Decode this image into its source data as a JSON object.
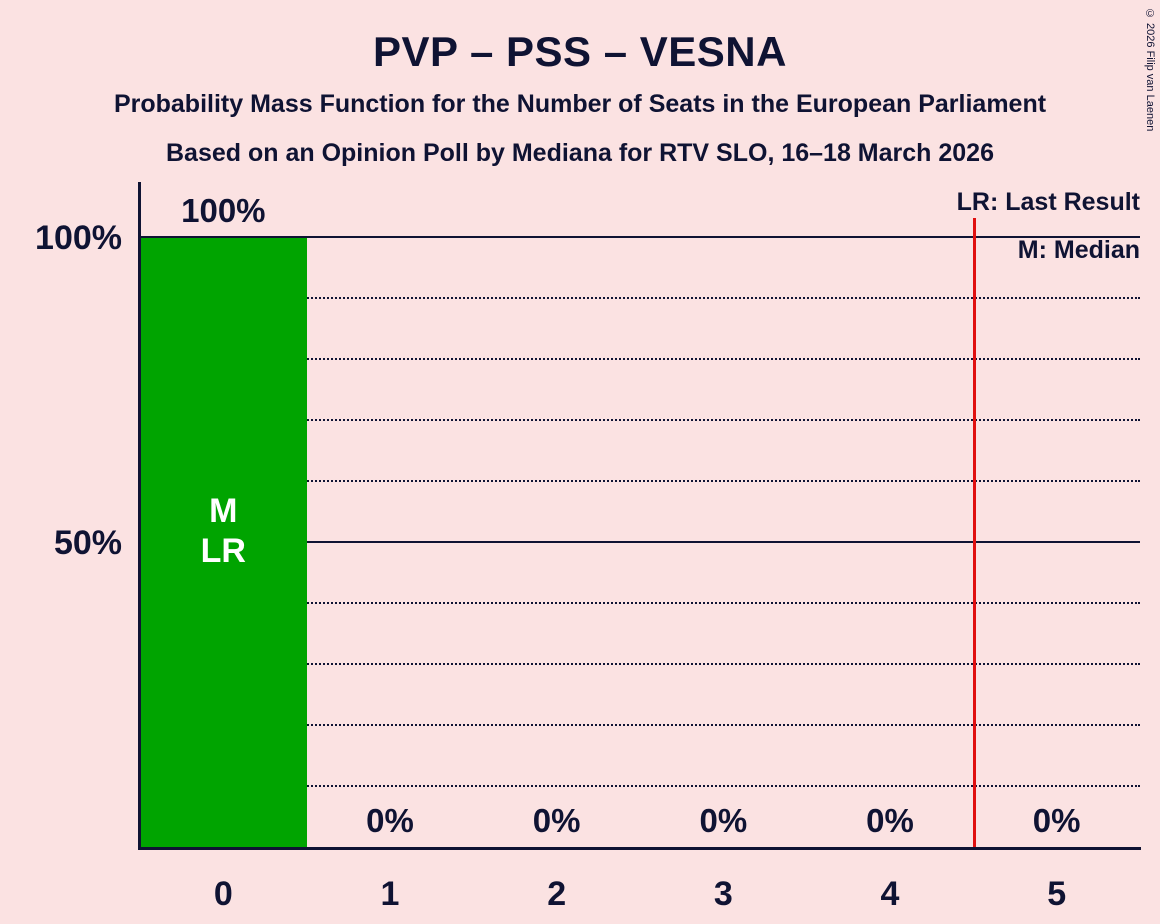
{
  "page": {
    "title": "PVP – PSS – VESNA",
    "subtitle": "Probability Mass Function for the Number of Seats in the European Parliament",
    "poll_info": "Based on an Opinion Poll by Mediana for RTV SLO, 16–18 March 2026",
    "copyright": "© 2026 Filip van Laenen"
  },
  "legend": {
    "lines": [
      "LR: Last Result",
      "M: Median"
    ]
  },
  "colors": {
    "background": "#fbe2e2",
    "text": "#0f1333",
    "bar": "#00a400",
    "bar_text": "#ffffff",
    "red_line": "#e01010"
  },
  "chart_data": {
    "type": "bar",
    "title": "PVP – PSS – VESNA",
    "categories": [
      "0",
      "1",
      "2",
      "3",
      "4",
      "5"
    ],
    "values": [
      100,
      0,
      0,
      0,
      0,
      0
    ],
    "value_labels": [
      "100%",
      "0%",
      "0%",
      "0%",
      "0%",
      "0%"
    ],
    "bar_annotations": [
      [
        "M",
        "LR"
      ],
      [],
      [],
      [],
      [],
      []
    ],
    "ylim": [
      0,
      100
    ],
    "gridlines": [
      {
        "value": 100,
        "label": "100%",
        "style": "solid"
      },
      {
        "value": 90,
        "label": "",
        "style": "dotted"
      },
      {
        "value": 80,
        "label": "",
        "style": "dotted"
      },
      {
        "value": 70,
        "label": "",
        "style": "dotted"
      },
      {
        "value": 60,
        "label": "",
        "style": "dotted"
      },
      {
        "value": 50,
        "label": "50%",
        "style": "solid"
      },
      {
        "value": 40,
        "label": "",
        "style": "dotted"
      },
      {
        "value": 30,
        "label": "",
        "style": "dotted"
      },
      {
        "value": 20,
        "label": "",
        "style": "dotted"
      },
      {
        "value": 10,
        "label": "",
        "style": "dotted"
      }
    ],
    "red_vertical_line_x": 4.5,
    "legend_entries": [
      "LR: Last Result",
      "M: Median"
    ],
    "legend_position": "top-right",
    "grid": "dotted-horizontal"
  }
}
